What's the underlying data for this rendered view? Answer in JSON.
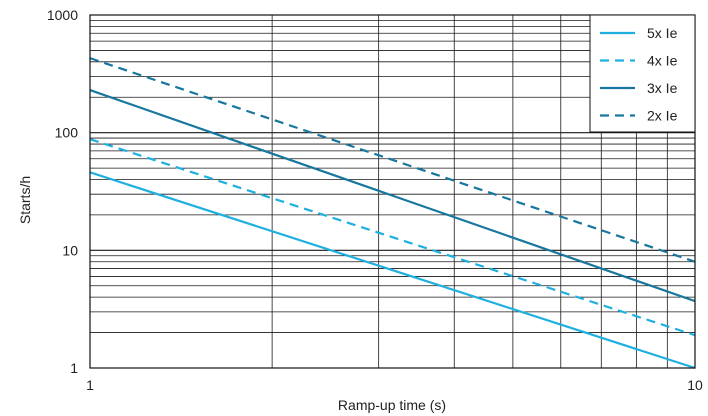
{
  "chart_data": {
    "type": "line",
    "x_scale": "log",
    "y_scale": "log",
    "xlim": [
      1,
      10
    ],
    "ylim": [
      1,
      1000
    ],
    "grid": true,
    "legend_position": "top-right",
    "xlabel": "Ramp-up time (s)",
    "ylabel": "Starts/h",
    "x_ticks": [
      "1",
      "10"
    ],
    "y_ticks": [
      "1",
      "10",
      "100",
      "1000"
    ],
    "series": [
      {
        "name": "5x Ie",
        "color": "#1fb0e0",
        "dash": "solid",
        "x": [
          1,
          10
        ],
        "y": [
          46,
          1.0
        ]
      },
      {
        "name": "4x Ie",
        "color": "#1fb0e0",
        "dash": "dashed",
        "x": [
          1,
          10
        ],
        "y": [
          88,
          1.9
        ]
      },
      {
        "name": "3x Ie",
        "color": "#17779e",
        "dash": "solid",
        "x": [
          1,
          10
        ],
        "y": [
          230,
          3.7
        ]
      },
      {
        "name": "2x Ie",
        "color": "#17779e",
        "dash": "dashed",
        "x": [
          1,
          10
        ],
        "y": [
          430,
          8.0
        ]
      }
    ]
  }
}
